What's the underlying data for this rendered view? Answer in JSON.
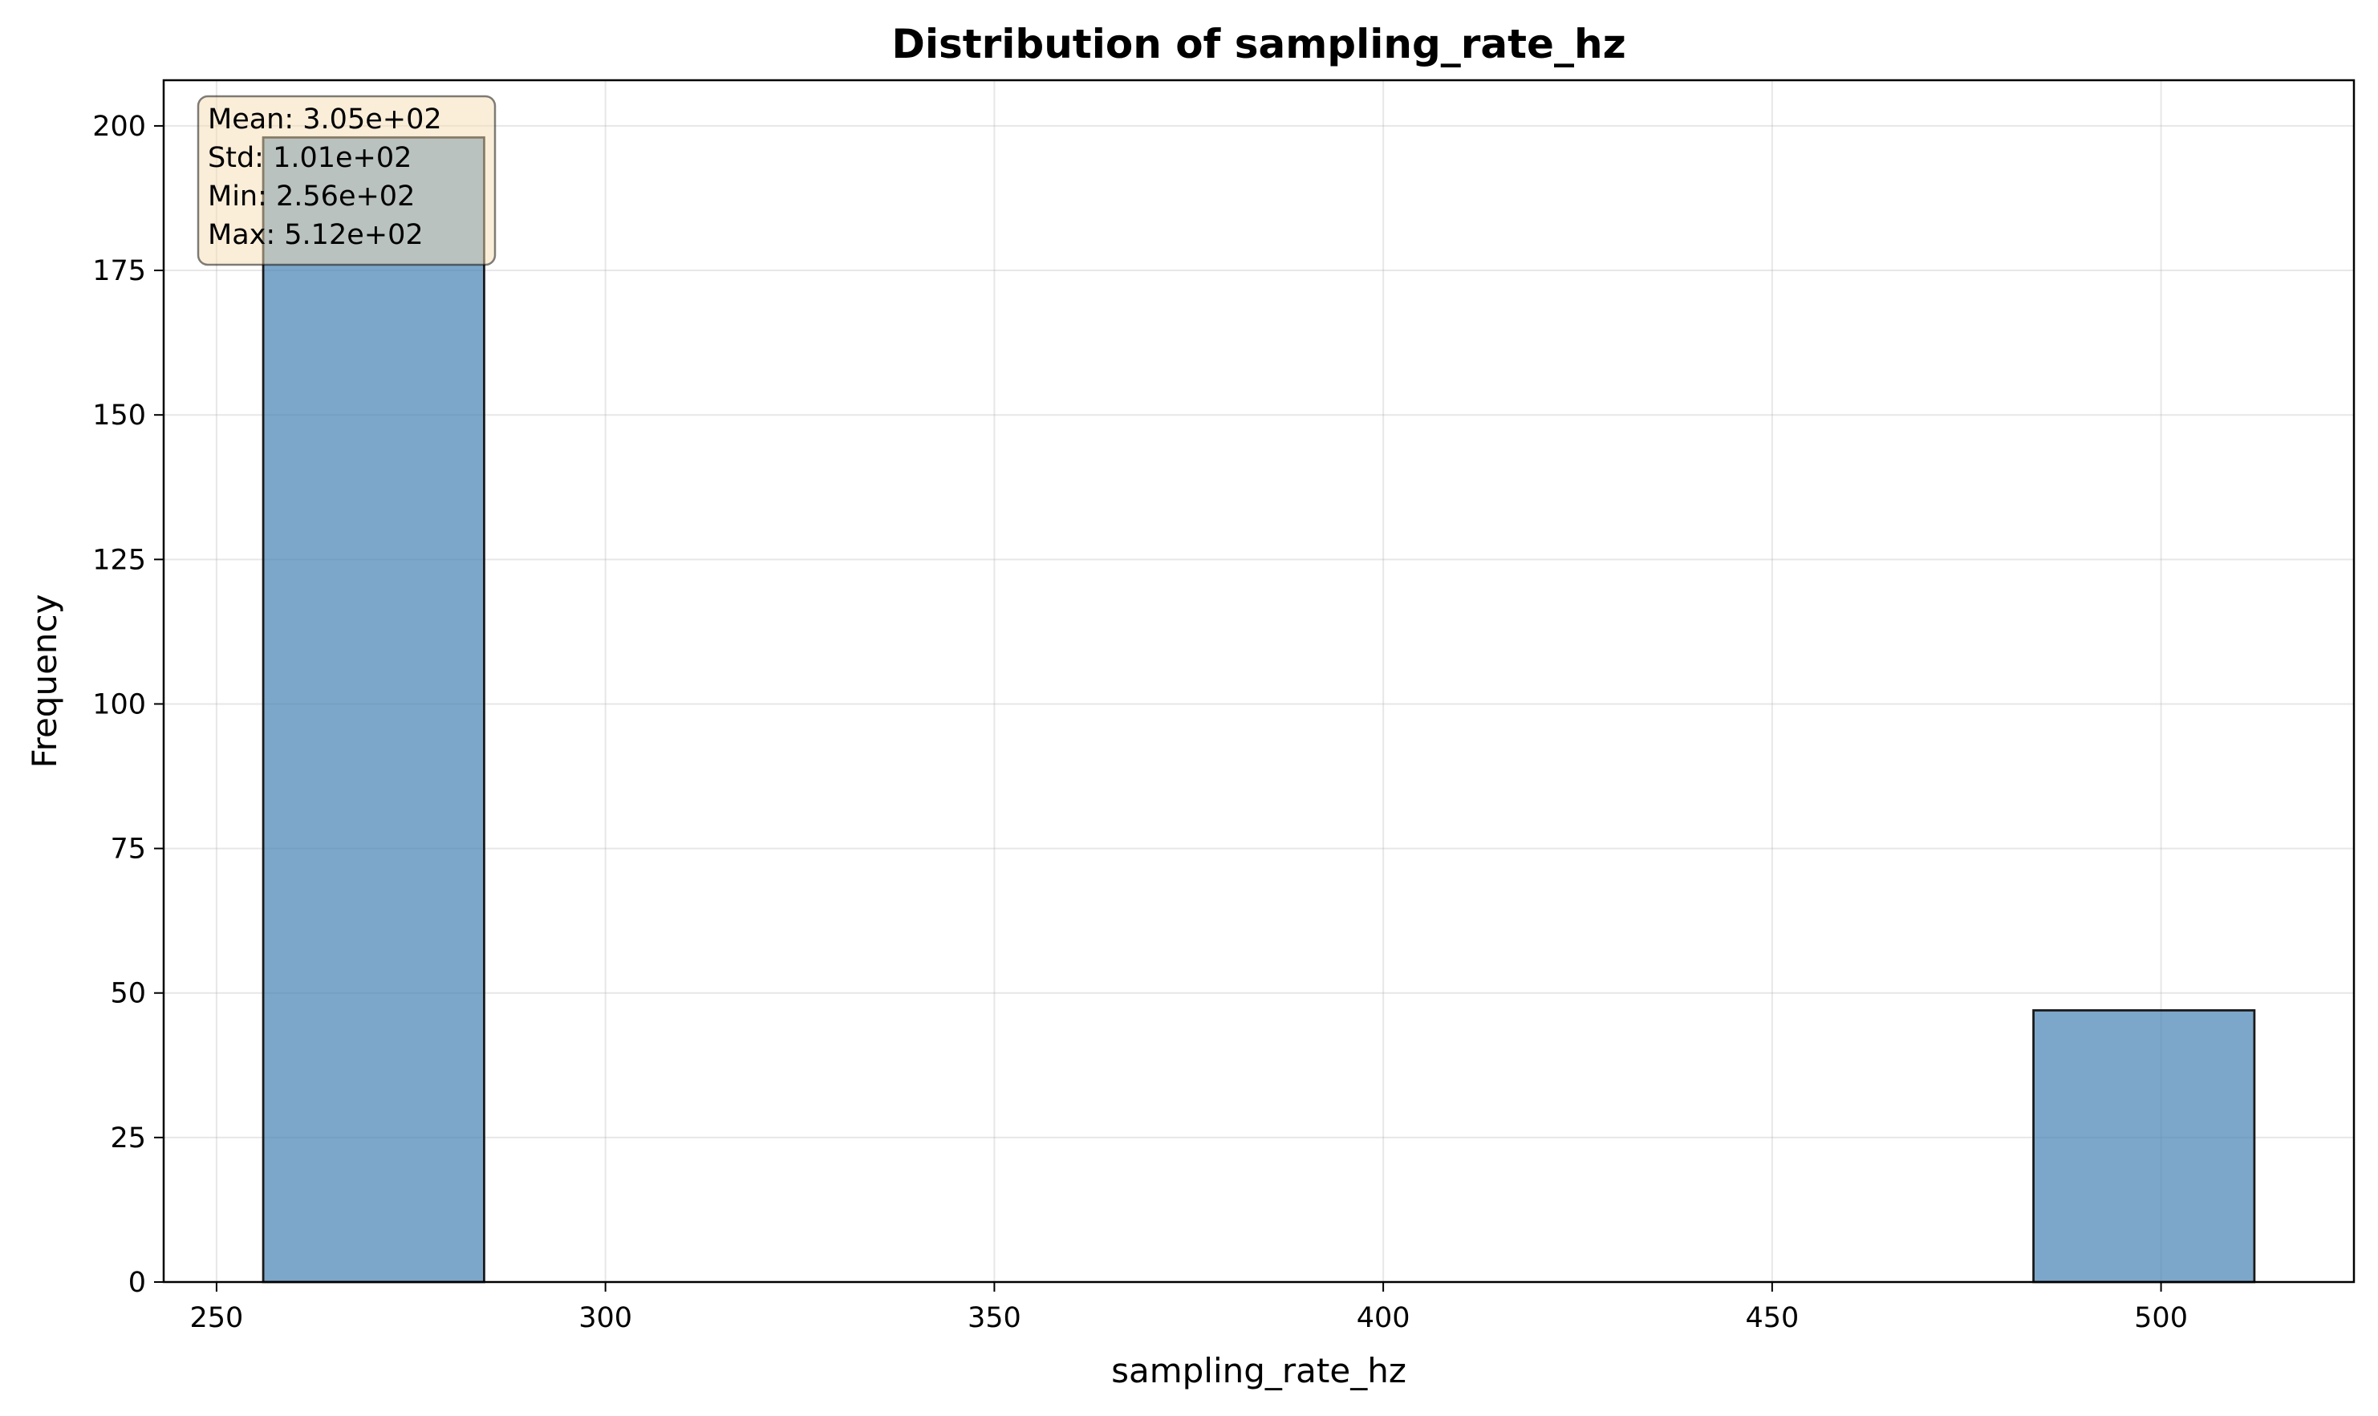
{
  "chart_data": {
    "type": "bar",
    "title": "Distribution of sampling_rate_hz",
    "xlabel": "sampling_rate_hz",
    "ylabel": "Frequency",
    "xlim": [
      243.2,
      524.8
    ],
    "ylim": [
      0,
      207.9
    ],
    "xticks": [
      250,
      300,
      350,
      400,
      450,
      500
    ],
    "yticks": [
      0,
      25,
      50,
      75,
      100,
      125,
      150,
      175,
      200
    ],
    "grid": true,
    "bins": [
      {
        "x0": 256.0,
        "x1": 284.4,
        "count": 198
      },
      {
        "x0": 284.4,
        "x1": 312.9,
        "count": 0
      },
      {
        "x0": 312.9,
        "x1": 341.3,
        "count": 0
      },
      {
        "x0": 341.3,
        "x1": 369.8,
        "count": 0
      },
      {
        "x0": 369.8,
        "x1": 398.2,
        "count": 0
      },
      {
        "x0": 398.2,
        "x1": 426.7,
        "count": 0
      },
      {
        "x0": 426.7,
        "x1": 455.1,
        "count": 0
      },
      {
        "x0": 455.1,
        "x1": 483.6,
        "count": 0
      },
      {
        "x0": 483.6,
        "x1": 512.0,
        "count": 47
      }
    ],
    "bar_color": "#4682b4",
    "bar_edge_color": "#1a1a1a",
    "stats": [
      "Mean: 3.05e+02",
      "Std: 1.01e+02",
      "Min: 2.56e+02",
      "Max: 5.12e+02"
    ],
    "stats_box_color": "#f5deb3"
  }
}
